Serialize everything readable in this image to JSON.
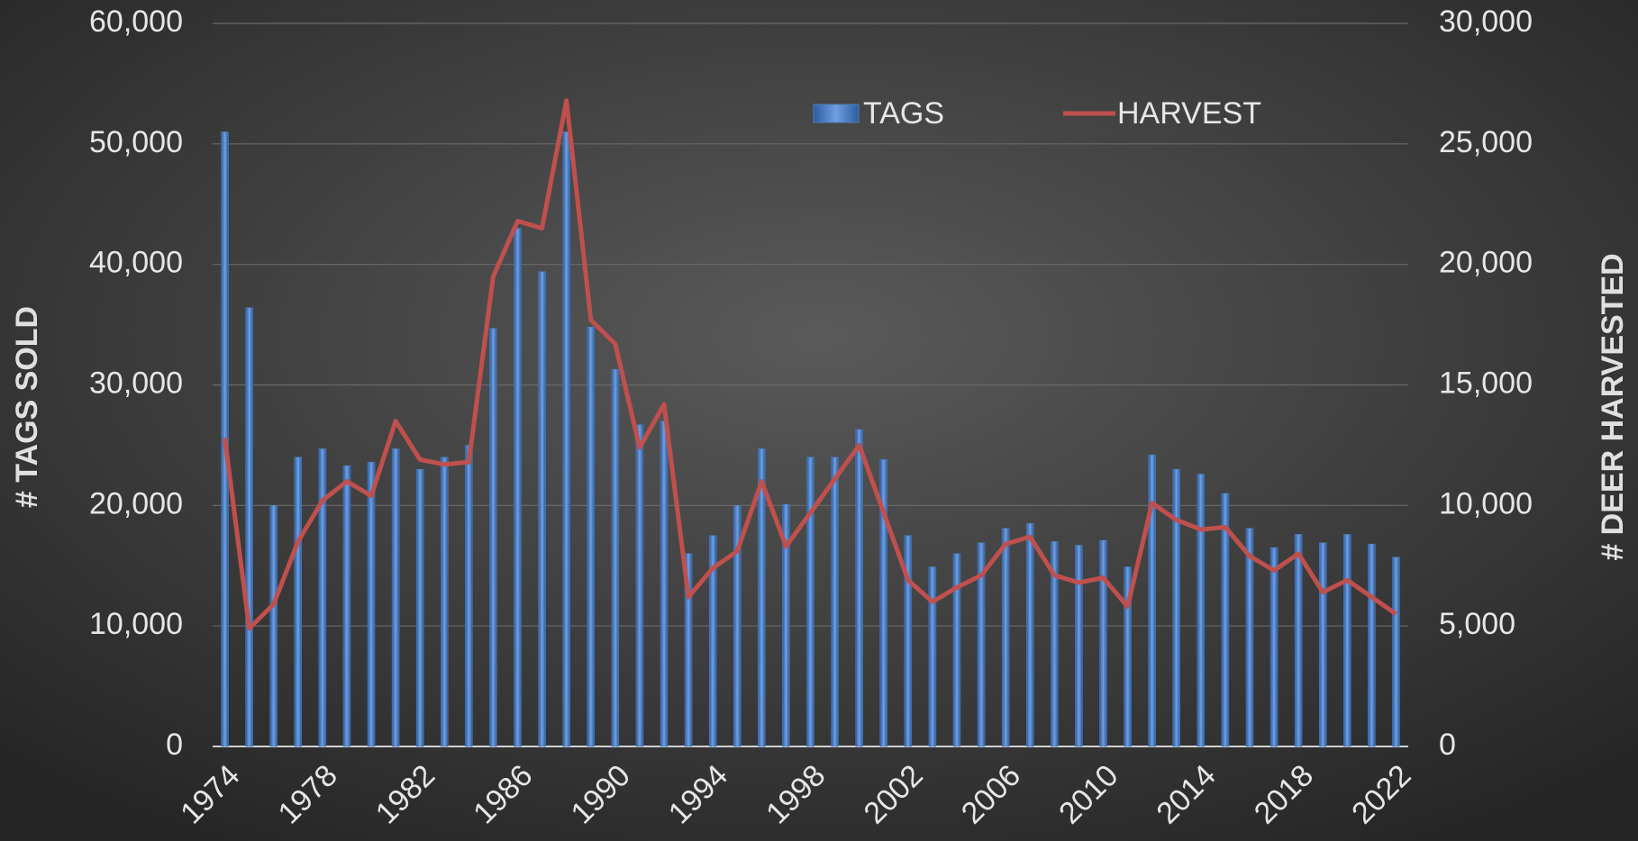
{
  "chart_data": {
    "type": "bar-line",
    "y_label": "# TAGS SOLD",
    "y2_label": "# DEER HARVESTED",
    "x": [
      1974,
      1975,
      1976,
      1977,
      1978,
      1979,
      1980,
      1981,
      1982,
      1983,
      1984,
      1985,
      1986,
      1987,
      1988,
      1989,
      1990,
      1991,
      1992,
      1993,
      1994,
      1995,
      1996,
      1997,
      1998,
      1999,
      2000,
      2001,
      2002,
      2003,
      2004,
      2005,
      2006,
      2007,
      2008,
      2009,
      2010,
      2011,
      2012,
      2013,
      2014,
      2015,
      2016,
      2017,
      2018,
      2019,
      2020,
      2021,
      2022
    ],
    "xlim": [
      1973.5,
      2022.5
    ],
    "xticks": [
      1974,
      1978,
      1982,
      1986,
      1990,
      1994,
      1998,
      2002,
      2006,
      2010,
      2014,
      2018,
      2022
    ],
    "ylim": [
      0,
      60000
    ],
    "yticks": [
      0,
      {
        "value": 10000,
        "label": "10,000"
      },
      {
        "value": 20000,
        "label": "20,000"
      },
      {
        "value": 30000,
        "label": "30,000"
      },
      {
        "value": 40000,
        "label": "40,000"
      },
      {
        "value": 50000,
        "label": "50,000"
      },
      {
        "value": 60000,
        "label": "60,000"
      }
    ],
    "y2lim": [
      0,
      30000
    ],
    "y2ticks": [
      0,
      {
        "value": 5000,
        "label": "5,000"
      },
      {
        "value": 10000,
        "label": "10,000"
      },
      {
        "value": 15000,
        "label": "15,000"
      },
      {
        "value": 20000,
        "label": "20,000"
      },
      {
        "value": 25000,
        "label": "25,000"
      },
      {
        "value": 30000,
        "label": "30,000"
      }
    ],
    "grid": true,
    "legend": "top",
    "series": [
      {
        "name": "TAGS",
        "type": "bar",
        "color": "#4f81bd",
        "values": [
          51000,
          36400,
          20000,
          24000,
          24700,
          23300,
          23600,
          24700,
          23000,
          24000,
          25000,
          34700,
          43000,
          39400,
          51000,
          34800,
          31300,
          26700,
          27000,
          16000,
          17500,
          20000,
          24700,
          20100,
          24000,
          24000,
          26300,
          23800,
          17500,
          14900,
          16000,
          16900,
          18100,
          18500,
          17000,
          16700,
          17100,
          14900,
          24200,
          23000,
          22600,
          21000,
          18100,
          16500,
          17600,
          16900,
          17600,
          16800,
          15700
        ]
      },
      {
        "name": "HARVEST",
        "type": "line",
        "axis": "y2",
        "color": "#c0504d",
        "values": [
          12800,
          4900,
          5900,
          8500,
          10200,
          11000,
          10400,
          13500,
          11900,
          11700,
          11800,
          19500,
          21800,
          21500,
          26800,
          17700,
          16700,
          12400,
          14200,
          6200,
          7400,
          8100,
          11000,
          8300,
          9700,
          11100,
          12500,
          9700,
          6900,
          6000,
          6600,
          7100,
          8400,
          8700,
          7100,
          6800,
          7000,
          5800,
          10100,
          9400,
          9000,
          9100,
          7900,
          7300,
          8000,
          6400,
          6900,
          6200,
          5500
        ]
      }
    ]
  }
}
